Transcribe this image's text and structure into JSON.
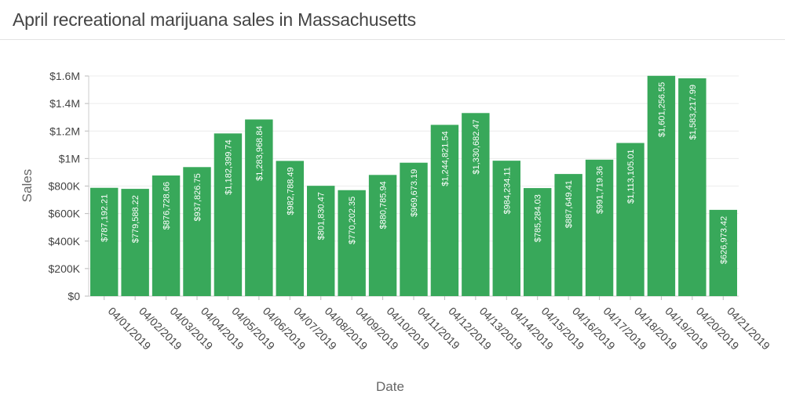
{
  "chart_data": {
    "type": "bar",
    "title": "April recreational marijuana sales in Massachusetts",
    "xlabel": "Date",
    "ylabel": "Sales",
    "ylim": [
      0,
      1600000
    ],
    "yticks": [
      0,
      200000,
      400000,
      600000,
      800000,
      1000000,
      1200000,
      1400000,
      1600000
    ],
    "ytick_labels": [
      "$0",
      "$200K",
      "$400K",
      "$600K",
      "$800K",
      "$1M",
      "$1.2M",
      "$1.4M",
      "$1.6M"
    ],
    "grid": true,
    "bar_color": "#38a85a",
    "categories": [
      "04/01/2019",
      "04/02/2019",
      "04/03/2019",
      "04/04/2019",
      "04/05/2019",
      "04/06/2019",
      "04/07/2019",
      "04/08/2019",
      "04/09/2019",
      "04/10/2019",
      "04/11/2019",
      "04/12/2019",
      "04/13/2019",
      "04/14/2019",
      "04/15/2019",
      "04/16/2019",
      "04/17/2019",
      "04/18/2019",
      "04/19/2019",
      "04/20/2019",
      "04/21/2019"
    ],
    "values": [
      787192.21,
      779588.22,
      876728.66,
      937826.75,
      1182399.74,
      1283968.84,
      982788.49,
      801830.47,
      770202.35,
      880785.94,
      969673.19,
      1244821.54,
      1330682.47,
      984234.11,
      785284.03,
      887649.41,
      991719.36,
      1113105.01,
      1601256.55,
      1583217.99,
      626973.42
    ],
    "data_labels": [
      "$787,192.21",
      "$779,588.22",
      "$876,728.66",
      "$937,826.75",
      "$1,182,399.74",
      "$1,283,968.84",
      "$982,788.49",
      "$801,830.47",
      "$770,202.35",
      "$880,785.94",
      "$969,673.19",
      "$1,244,821.54",
      "$1,330,682.47",
      "$984,234.11",
      "$785,284.03",
      "$887,649.41",
      "$991,719.36",
      "$1,113,105.01",
      "$1,601,256.55",
      "$1,583,217.99",
      "$626,973.42"
    ]
  }
}
